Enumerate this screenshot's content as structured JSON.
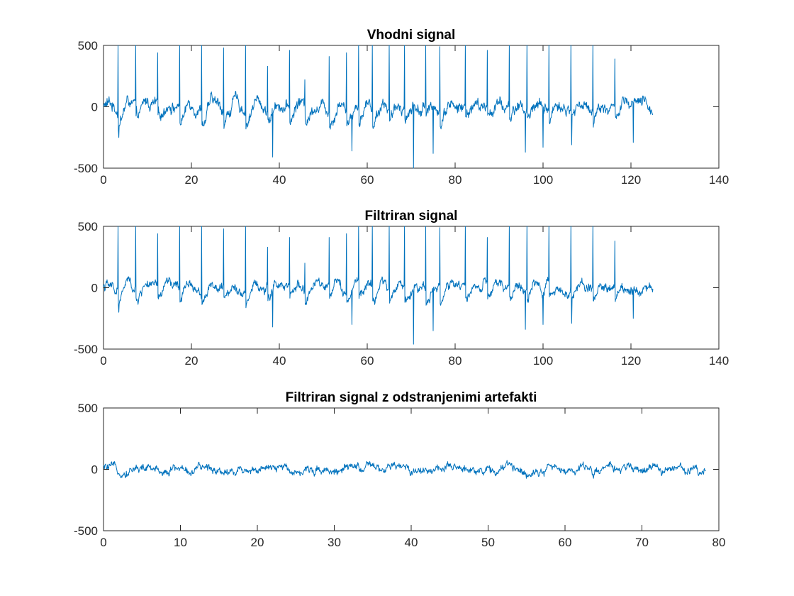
{
  "chart_data": [
    {
      "type": "line",
      "title": "Vhodni signal",
      "xlabel": "",
      "ylabel": "",
      "xlim": [
        0,
        140
      ],
      "ylim": [
        -500,
        500
      ],
      "xticks": [
        "0",
        "20",
        "40",
        "60",
        "80",
        "100",
        "120",
        "140"
      ],
      "yticks": [
        "-500",
        "0",
        "500"
      ],
      "x_end": 125,
      "color": "#0072BD",
      "series": [
        {
          "noise_amplitude": 55,
          "clip_max": 500,
          "spikes_positive": [
            [
              3.3,
              500
            ],
            [
              7.3,
              500
            ],
            [
              12.3,
              440
            ],
            [
              17.3,
              500
            ],
            [
              22.3,
              500
            ],
            [
              27.3,
              480
            ],
            [
              32.3,
              500
            ],
            [
              37.3,
              330
            ],
            [
              42.3,
              460
            ],
            [
              45.8,
              220
            ],
            [
              51.3,
              410
            ],
            [
              55.3,
              440
            ],
            [
              58.0,
              500
            ],
            [
              61.2,
              500
            ],
            [
              65.0,
              500
            ],
            [
              68.5,
              500
            ],
            [
              73.3,
              500
            ],
            [
              76.5,
              490
            ],
            [
              82.3,
              500
            ],
            [
              87.3,
              460
            ],
            [
              92.3,
              500
            ],
            [
              96.3,
              500
            ],
            [
              101.3,
              500
            ],
            [
              106.3,
              500
            ],
            [
              111.3,
              500
            ],
            [
              116.3,
              390
            ]
          ],
          "dips_negative": [
            [
              3.5,
              -250
            ],
            [
              38.5,
              -410
            ],
            [
              56.5,
              -360
            ],
            [
              70.5,
              -500
            ],
            [
              75.0,
              -380
            ],
            [
              96.0,
              -370
            ],
            [
              100.0,
              -330
            ],
            [
              106.5,
              -310
            ],
            [
              120.5,
              -290
            ]
          ]
        }
      ]
    },
    {
      "type": "line",
      "title": "Filtriran signal",
      "xlabel": "",
      "ylabel": "",
      "xlim": [
        0,
        140
      ],
      "ylim": [
        -500,
        500
      ],
      "xticks": [
        "0",
        "20",
        "40",
        "60",
        "80",
        "100",
        "120",
        "140"
      ],
      "yticks": [
        "-500",
        "0",
        "500"
      ],
      "x_end": 125,
      "color": "#0072BD",
      "series": [
        {
          "noise_amplitude": 45,
          "clip_max": 500,
          "spikes_positive": [
            [
              3.3,
              500
            ],
            [
              7.3,
              500
            ],
            [
              12.3,
              440
            ],
            [
              17.3,
              500
            ],
            [
              22.3,
              500
            ],
            [
              27.3,
              480
            ],
            [
              32.3,
              500
            ],
            [
              37.3,
              330
            ],
            [
              42.3,
              410
            ],
            [
              45.8,
              200
            ],
            [
              51.3,
              410
            ],
            [
              55.3,
              440
            ],
            [
              58.0,
              500
            ],
            [
              61.2,
              500
            ],
            [
              65.0,
              500
            ],
            [
              68.5,
              500
            ],
            [
              73.3,
              500
            ],
            [
              76.5,
              490
            ],
            [
              82.3,
              500
            ],
            [
              87.3,
              410
            ],
            [
              92.3,
              500
            ],
            [
              96.3,
              500
            ],
            [
              101.3,
              500
            ],
            [
              106.3,
              500
            ],
            [
              111.3,
              500
            ],
            [
              116.3,
              380
            ]
          ],
          "dips_negative": [
            [
              3.5,
              -200
            ],
            [
              38.5,
              -320
            ],
            [
              56.5,
              -300
            ],
            [
              70.5,
              -460
            ],
            [
              75.0,
              -350
            ],
            [
              96.0,
              -340
            ],
            [
              100.0,
              -300
            ],
            [
              106.5,
              -290
            ],
            [
              120.5,
              -250
            ]
          ]
        }
      ]
    },
    {
      "type": "line",
      "title": "Filtriran signal z odstranjenimi artefakti",
      "xlabel": "",
      "ylabel": "",
      "xlim": [
        0,
        80
      ],
      "ylim": [
        -500,
        500
      ],
      "xticks": [
        "0",
        "10",
        "20",
        "30",
        "40",
        "50",
        "60",
        "70",
        "80"
      ],
      "yticks": [
        "-500",
        "0",
        "500"
      ],
      "x_end": 78.3,
      "color": "#0072BD",
      "series": [
        {
          "noise_amplitude": 38,
          "clip_max": 500,
          "spikes_positive": [],
          "dips_negative": []
        }
      ]
    }
  ]
}
